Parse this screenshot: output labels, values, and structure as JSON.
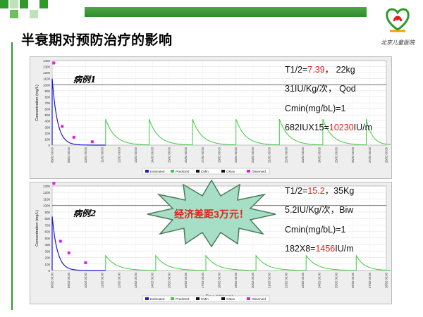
{
  "slide": {
    "title": "半衰期对预防治疗的影响",
    "logo_text": "北京儿童医院",
    "callout": "经济差距3万元！"
  },
  "case1": {
    "label": "病例1",
    "line1_prefix": "T1/2=",
    "line1_value": "7.39",
    "line1_suffix": "，  22kg",
    "line2": "31IU/Kg/次， Qod",
    "line3": "Cmin(mg/bL)=1",
    "line4_prefix": "682IUX15=",
    "line4_value": "10230",
    "line4_suffix": "IU/m"
  },
  "case2": {
    "label": "病例2",
    "line1_prefix": "T1/2=",
    "line1_value": "15.2",
    "line1_suffix": "，35Kg",
    "line2": "5.2IU/Kg/次，Biw",
    "line3": "Cmin(mg/bL)=1",
    "line4_prefix": "182X8=",
    "line4_value": "1456",
    "line4_suffix": "IU/m"
  },
  "chart_common": {
    "y_axis_label": "Concentration (mg/L)",
    "x_axis_label": "Time (HH:mm)",
    "legend": [
      "Estimated",
      "Predicted",
      "CMin",
      "CMax",
      "Observed"
    ]
  },
  "chart_data": [
    {
      "type": "line",
      "title": "",
      "ylabel": "Concentration (mg/L)",
      "xlabel": "Time (HH:mm)",
      "y_ticks": [
        0,
        100,
        200,
        300,
        400,
        500,
        600,
        700,
        800,
        900,
        1000,
        1100,
        1200,
        1300,
        1400
      ],
      "ylim": [
        0,
        1400
      ],
      "x_ticks": [
        "08/02 00:00",
        "09/02 00:00",
        "10/02 00:00",
        "11/02 00:00",
        "12/02 00:00",
        "13/02 00:00",
        "14/02 00:00",
        "15/02 00:00",
        "16/02 00:00",
        "17/02 00:00",
        "18/02 00:00",
        "19/02 00:00",
        "20/02 00:00",
        "21/02 00:00",
        "22/02 00:00",
        "23/02 00:00",
        "24/02 00:00",
        "25/02 00:00",
        "26/02 00:00",
        "27/02 00:00",
        "28/02 00:00"
      ],
      "reference_line": 1000,
      "estimated": {
        "start_index": 0,
        "end_index": 3.2,
        "peak": 1100
      },
      "predicted": {
        "dose_indices": [
          3.2,
          5.8,
          8.4,
          11,
          13.6,
          16.2,
          18.8
        ],
        "peak": 430,
        "end_index": 20.5
      },
      "observed": [
        {
          "x_index": 0.1,
          "y": 1360
        },
        {
          "x_index": 0.6,
          "y": 310
        },
        {
          "x_index": 1.3,
          "y": 130
        },
        {
          "x_index": 2.4,
          "y": 55
        }
      ]
    },
    {
      "type": "line",
      "title": "",
      "ylabel": "Concentration (mg/L)",
      "xlabel": "Time (HH:mm)",
      "y_ticks": [
        0,
        100,
        200,
        300,
        400,
        500,
        600,
        700,
        800,
        900,
        1000,
        1100,
        1200,
        1300
      ],
      "ylim": [
        0,
        1300
      ],
      "x_ticks": [
        "08/02 00:00",
        "09/02 00:00",
        "10/02 00:00",
        "11/02 00:00",
        "12/02 00:00",
        "13/02 00:00",
        "14/02 00:00",
        "15/02 00:00",
        "16/02 00:00",
        "17/02 00:00",
        "18/02 00:00",
        "19/02 00:00",
        "20/02 00:00",
        "21/02 00:00",
        "22/02 00:00",
        "23/02 00:00",
        "24/02 00:00",
        "25/02 00:00",
        "26/02 00:00",
        "27/02 00:00",
        "28/02 00:00"
      ],
      "reference_line": 1000,
      "estimated": {
        "start_index": 0,
        "end_index": 3.2,
        "peak": 830
      },
      "predicted": {
        "dose_indices": [
          3.2,
          6.2,
          9.2,
          12.2,
          15.2,
          18.2
        ],
        "peak": 230,
        "end_index": 20.5
      },
      "observed": [
        {
          "x_index": 0.1,
          "y": 1340
        },
        {
          "x_index": 0.5,
          "y": 450
        },
        {
          "x_index": 1.0,
          "y": 270
        },
        {
          "x_index": 2.0,
          "y": 120
        }
      ]
    }
  ]
}
